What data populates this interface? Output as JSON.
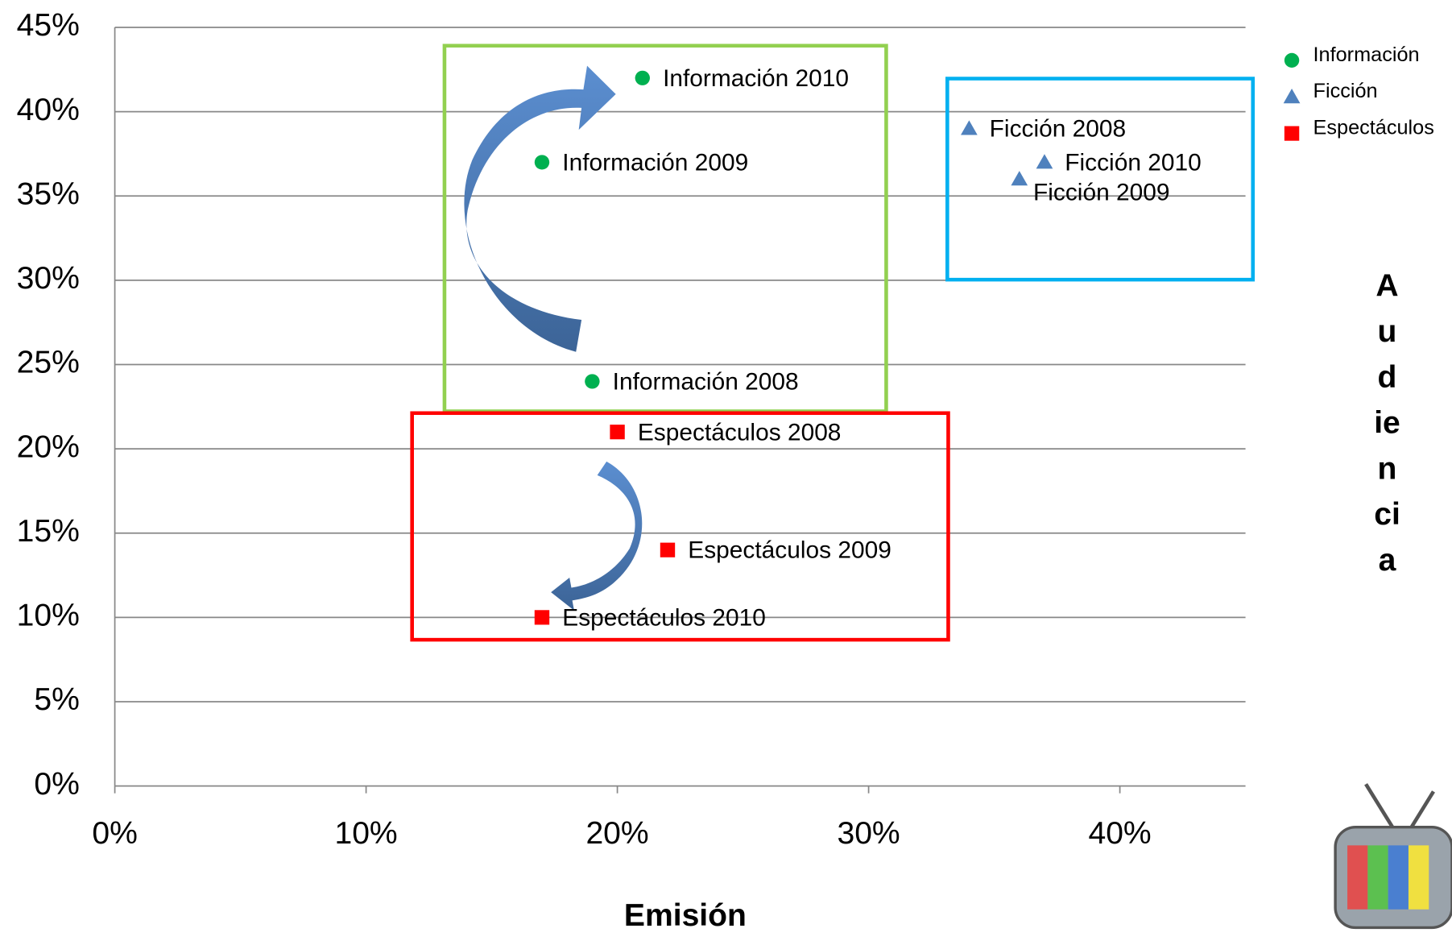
{
  "chart_data": {
    "type": "scatter",
    "x_label": "Emisión",
    "y_label_lines": [
      "A",
      "u",
      "d",
      "ie",
      "n",
      "ci",
      "a"
    ],
    "xlim": [
      0,
      45
    ],
    "ylim": [
      0,
      45
    ],
    "xticks": [
      {
        "value": 0,
        "label": "0%"
      },
      {
        "value": 10,
        "label": "10%"
      },
      {
        "value": 20,
        "label": "20%"
      },
      {
        "value": 30,
        "label": "30%"
      },
      {
        "value": 40,
        "label": "40%"
      }
    ],
    "yticks": [
      {
        "value": 0,
        "label": "0%"
      },
      {
        "value": 5,
        "label": "5%"
      },
      {
        "value": 10,
        "label": "10%"
      },
      {
        "value": 15,
        "label": "15%"
      },
      {
        "value": 20,
        "label": "20%"
      },
      {
        "value": 25,
        "label": "25%"
      },
      {
        "value": 30,
        "label": "30%"
      },
      {
        "value": 35,
        "label": "35%"
      },
      {
        "value": 40,
        "label": "40%"
      },
      {
        "value": 45,
        "label": "45%"
      }
    ],
    "grid": true,
    "legend": "top-right",
    "series": [
      {
        "name": "Información",
        "color": "#00b050",
        "marker": "circle",
        "x": [
          19,
          17,
          21
        ],
        "values": [
          24,
          37,
          42
        ],
        "labels": [
          "Información 2008",
          "Información 2009",
          "Información 2010"
        ]
      },
      {
        "name": "Ficción",
        "color": "#4f81bd",
        "marker": "triangle",
        "x": [
          34,
          36,
          37
        ],
        "values": [
          39,
          36,
          37
        ],
        "labels": [
          "Ficción 2008",
          "Ficción 2009",
          "Ficción 2010"
        ]
      },
      {
        "name": "Espectáculos",
        "color": "#ff0000",
        "marker": "square",
        "x": [
          20,
          22,
          17
        ],
        "values": [
          21,
          14,
          10
        ],
        "labels": [
          "Espectáculos 2008",
          "Espectáculos 2009",
          "Espectáculos 2010"
        ]
      }
    ]
  }
}
